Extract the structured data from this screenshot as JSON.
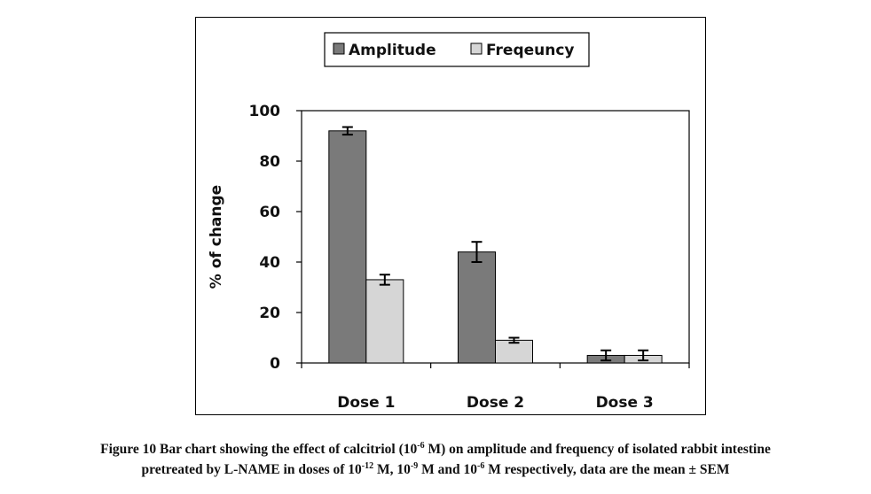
{
  "colors": {
    "amplitude": "#7a7a7a",
    "frequency": "#d6d6d6",
    "axis": "#000000"
  },
  "chart_data": {
    "type": "bar",
    "categories": [
      "Dose 1",
      "Dose 2",
      "Dose 3"
    ],
    "series": [
      {
        "name": "Amplitude",
        "values": [
          92,
          44,
          3
        ],
        "errors": [
          1.5,
          4,
          2
        ]
      },
      {
        "name": "Freqeuncy",
        "values": [
          33,
          9,
          3
        ],
        "errors": [
          2,
          1,
          2
        ]
      }
    ],
    "ylabel": "% of change",
    "ylim": [
      0,
      100
    ],
    "yticks": [
      "0",
      "20",
      "40",
      "60",
      "80",
      "100"
    ],
    "legend_position": "top",
    "grid": false,
    "error_bars": true
  },
  "caption": {
    "line1_a": "Figure 10 Bar chart showing the effect of calcitriol (10",
    "line1_sup": "-6",
    "line1_b": " M) on amplitude and frequency of isolated rabbit intestine",
    "line2_a": "pretreated by L-NAME in doses of 10",
    "line2_sup1": "-12",
    "line2_b": " M, 10",
    "line2_sup2": "-9",
    "line2_c": " M and 10",
    "line2_sup3": "-6",
    "line2_d": " M respectively, data are the mean ± SEM"
  }
}
